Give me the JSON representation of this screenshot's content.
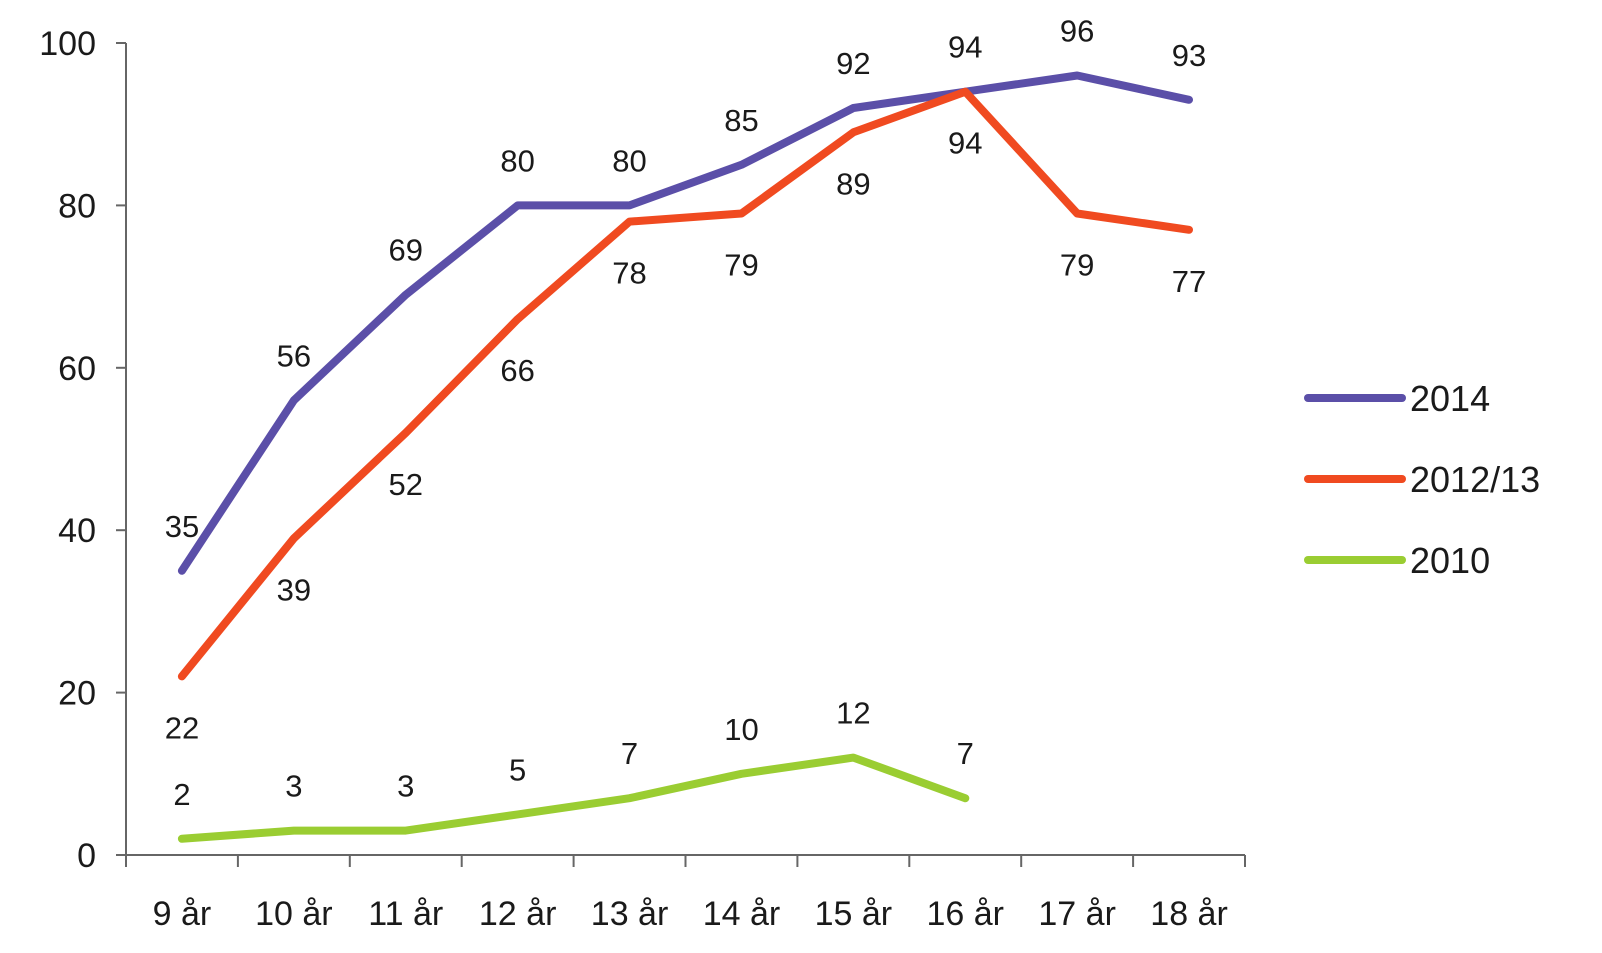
{
  "chart_data": {
    "type": "line",
    "categories": [
      "9 år",
      "10 år",
      "11 år",
      "12 år",
      "13 år",
      "14 år",
      "15 år",
      "16 år",
      "17 år",
      "18 år"
    ],
    "ylim": [
      0,
      100
    ],
    "yticks": [
      0,
      20,
      40,
      60,
      80,
      100
    ],
    "grid": false,
    "legend_position": "right",
    "data_labels": true,
    "series": [
      {
        "name": "2014",
        "color": "#5b4fa8",
        "values": [
          35,
          56,
          69,
          80,
          80,
          85,
          92,
          94,
          96,
          93
        ],
        "label_position": "above"
      },
      {
        "name": "2012/13",
        "color": "#f04a20",
        "values": [
          22,
          39,
          52,
          66,
          78,
          79,
          89,
          94,
          79,
          77
        ],
        "label_position": "below"
      },
      {
        "name": "2010",
        "color": "#9acd32",
        "values": [
          2,
          3,
          3,
          5,
          7,
          10,
          12,
          7,
          null,
          null
        ],
        "label_position": "above"
      }
    ]
  }
}
